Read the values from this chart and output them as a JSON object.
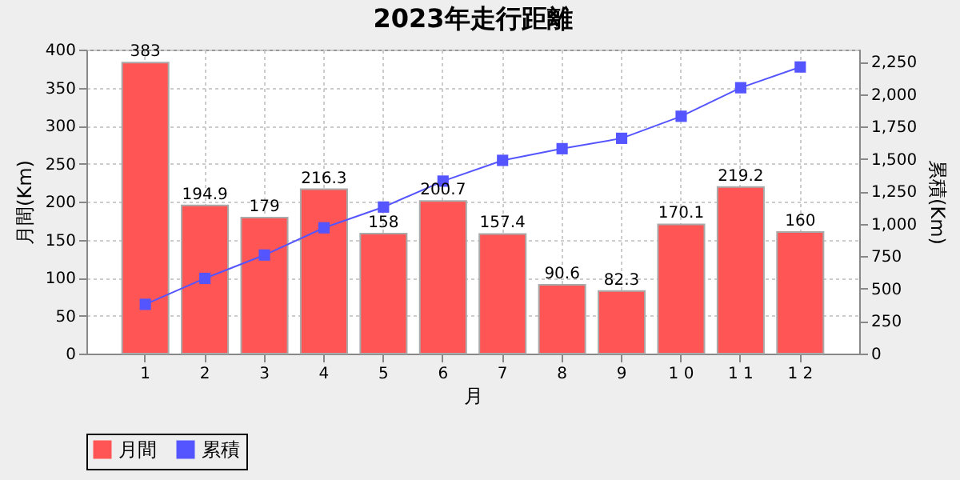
{
  "chart_data": {
    "type": "bar",
    "title": "2023年走行距離",
    "xlabel": "月",
    "ylabel": "月間(Km)",
    "y2label": "累積(Km)",
    "categories": [
      "1",
      "2",
      "3",
      "4",
      "5",
      "6",
      "7",
      "8",
      "9",
      "1 0",
      "1 1",
      "1 2"
    ],
    "series": [
      {
        "name": "月間",
        "color": "#ff5555",
        "values": [
          383,
          194.9,
          179,
          216.3,
          158,
          200.7,
          157.4,
          90.6,
          82.3,
          170.1,
          219.2,
          160
        ],
        "value_labels": [
          "383",
          "194.9",
          "179",
          "216.3",
          "158",
          "200.7",
          "157.4",
          "90.6",
          "82.3",
          "170.1",
          "219.2",
          "160"
        ]
      },
      {
        "name": "累積",
        "type": "line",
        "axis": "y2",
        "color": "#5555ff",
        "marker": "square",
        "values": [
          380,
          580,
          760,
          970,
          1130,
          1330,
          1490,
          1580,
          1660,
          1830,
          2050,
          2210
        ]
      }
    ],
    "ylim": [
      0,
      400
    ],
    "yticks": [
      0,
      50,
      100,
      150,
      200,
      250,
      300,
      350,
      400
    ],
    "y2lim": [
      0,
      2344
    ],
    "y2ticks": [
      0,
      250,
      500,
      750,
      {
        "value": 1000,
        "label": "1,000"
      },
      {
        "value": 1250,
        "label": "1,250"
      },
      {
        "value": 1500,
        "label": "1,500"
      },
      {
        "value": 1750,
        "label": "1,750"
      },
      {
        "value": 2000,
        "label": "2,000"
      },
      {
        "value": 2250,
        "label": "2,250"
      }
    ],
    "grid": true,
    "legend": "bottom"
  }
}
